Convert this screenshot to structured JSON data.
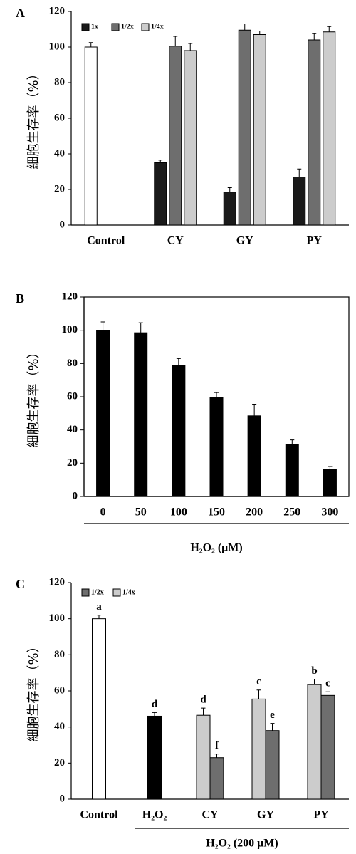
{
  "chart_data": [
    {
      "type": "bar",
      "panel": "A",
      "ylabel": "細胞生存率（%）",
      "ylim": [
        0,
        120
      ],
      "yticks": [
        0,
        20,
        40,
        60,
        80,
        100,
        120
      ],
      "frame": "axes",
      "categories": [
        "Control",
        "CY",
        "GY",
        "PY"
      ],
      "singles": [
        {
          "value": 100,
          "error": 2.5,
          "color": "#ffffff"
        }
      ],
      "series": [
        {
          "name": "1x",
          "color": "#1a1a1a",
          "values": [
            null,
            35,
            18.5,
            27
          ],
          "errors": [
            null,
            1.5,
            2.5,
            4.5
          ]
        },
        {
          "name": "1/2x",
          "color": "#6e6e6e",
          "values": [
            null,
            100.5,
            109.5,
            104
          ],
          "errors": [
            null,
            5.5,
            3.5,
            3.5
          ]
        },
        {
          "name": "1/4x",
          "color": "#cccccc",
          "values": [
            null,
            98,
            107,
            108.5
          ],
          "errors": [
            null,
            4,
            2,
            3
          ]
        }
      ]
    },
    {
      "type": "bar",
      "panel": "B",
      "ylabel": "細胞生存率（%）",
      "ylim": [
        0,
        120
      ],
      "yticks": [
        0,
        20,
        40,
        60,
        80,
        100,
        120
      ],
      "frame": "box",
      "categories": [
        "0",
        "50",
        "100",
        "150",
        "200",
        "250",
        "300"
      ],
      "color": "#000000",
      "values": [
        100,
        98.5,
        79,
        59.5,
        48.5,
        31.5,
        16.5
      ],
      "errors": [
        5,
        6,
        4,
        3,
        7,
        2.5,
        1.5
      ],
      "xlabel": "H₂O₂ (μM)"
    },
    {
      "type": "bar",
      "panel": "C",
      "ylabel": "細胞生存率（%）",
      "ylim": [
        0,
        120
      ],
      "yticks": [
        0,
        20,
        40,
        60,
        80,
        100,
        120
      ],
      "frame": "axes",
      "categories": [
        "Control",
        "H₂O₂",
        "CY",
        "GY",
        "PY"
      ],
      "singles": [
        {
          "value": 100,
          "error": 2,
          "color": "#ffffff",
          "letter": "a"
        },
        {
          "value": 46,
          "error": 2,
          "color": "#000000",
          "letter": "d"
        }
      ],
      "series": [
        {
          "name": "1/2x",
          "color": "#6e6e6e",
          "values": [
            null,
            null,
            23,
            38,
            57.5
          ],
          "errors": [
            null,
            null,
            2,
            4,
            2
          ],
          "letters": [
            null,
            null,
            "f",
            "e",
            "c"
          ]
        },
        {
          "name": "1/4x",
          "color": "#cccccc",
          "values": [
            null,
            null,
            46.5,
            55.5,
            63.5
          ],
          "errors": [
            null,
            null,
            4,
            5,
            3
          ],
          "letters": [
            null,
            null,
            "d",
            "c",
            "b"
          ]
        }
      ],
      "xlabel": "H₂O₂ (200 μM)"
    }
  ]
}
